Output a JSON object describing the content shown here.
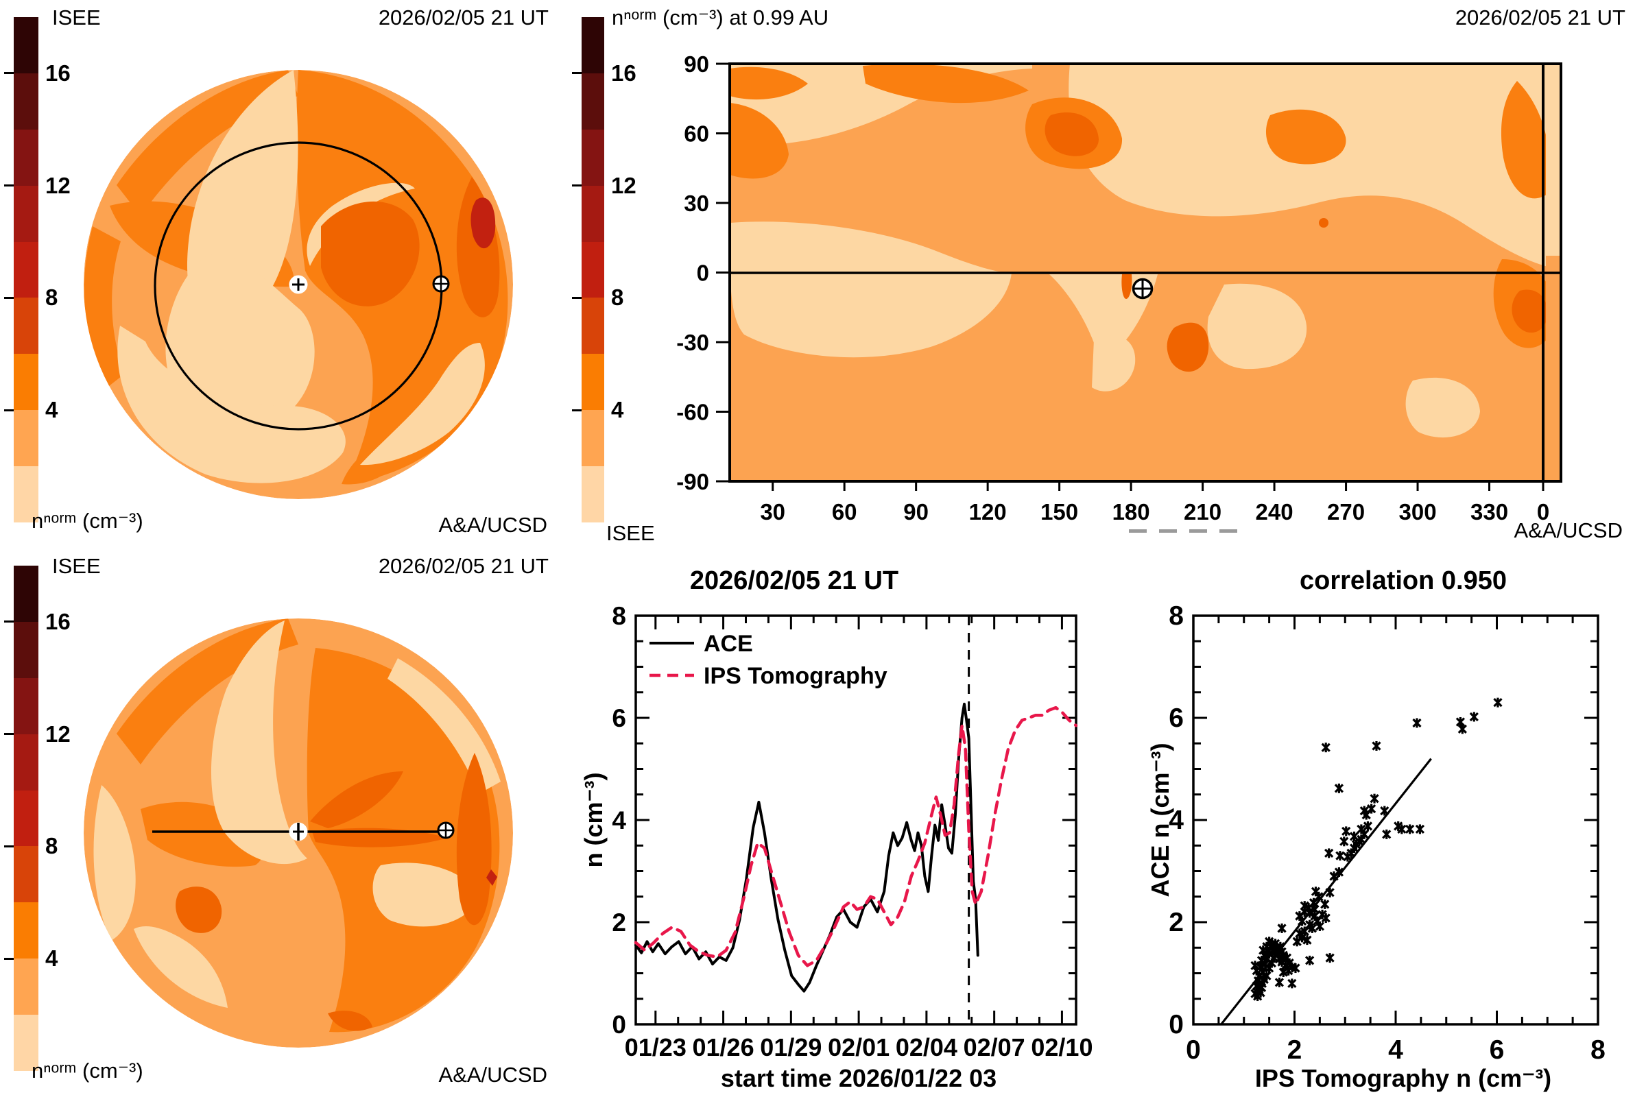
{
  "palette": {
    "c0": "#fdd7a3",
    "c1": "#fca351",
    "c2": "#fa7f10",
    "c3": "#f06400",
    "c4": "#c22110",
    "ips_red": "#e8174a",
    "colorbar": [
      "#2e0505",
      "#5c0e0c",
      "#841412",
      "#a51a12",
      "#c11f10",
      "#d84409",
      "#fa7d02",
      "#ffa551",
      "#ffd6a6"
    ]
  },
  "colorbar": {
    "range": [
      0,
      18
    ],
    "ticks": [
      {
        "value": 16,
        "label": "16"
      },
      {
        "value": 12,
        "label": "12"
      },
      {
        "value": 8,
        "label": "8"
      },
      {
        "value": 4,
        "label": "4"
      }
    ]
  },
  "panels": {
    "fisheye_top": {
      "source": "ISEE",
      "timestamp": "2026/02/05 21 UT",
      "units": "nⁿᵒʳᵐ (cm⁻³)",
      "credit": "A&A/UCSD"
    },
    "sky_map": {
      "title": "nⁿᵒʳᵐ (cm⁻³) at 0.99 AU",
      "timestamp": "2026/02/05 21 UT",
      "source": "ISEE",
      "credit": "A&A/UCSD",
      "lat_ticks": [
        "90",
        "60",
        "30",
        "0",
        "-30",
        "-60",
        "-90"
      ],
      "lon_ticks": [
        "30",
        "60",
        "90",
        "120",
        "150",
        "180",
        "210",
        "240",
        "270",
        "300",
        "330"
      ],
      "wrap_tick": "0",
      "earth_marker": {
        "lon": 185,
        "lat": -7
      }
    },
    "fisheye_bottom": {
      "source": "ISEE",
      "timestamp": "2026/02/05 21 UT",
      "units": "nⁿᵒʳᵐ (cm⁻³)",
      "credit": "A&A/UCSD"
    }
  },
  "chart_data": [
    {
      "type": "line",
      "title": "2026/02/05 21 UT",
      "xlabel": "start time 2026/01/22 03",
      "ylabel": "n (cm⁻³)",
      "ylim": [
        0,
        8
      ],
      "y_ticks": [
        0,
        2,
        4,
        6,
        8
      ],
      "x_tick_labels": [
        "01/23",
        "01/26",
        "01/29",
        "02/01",
        "02/04",
        "02/07",
        "02/10"
      ],
      "x_axis_days": 19.5,
      "first_tick_day": 0.875,
      "tick_step_days": 3,
      "marker_line_day": 14.75,
      "legend_position": "top-left",
      "series": [
        {
          "name": "ACE",
          "style": "solid",
          "color": "#000000",
          "points": [
            [
              0,
              1.55
            ],
            [
              0.25,
              1.4
            ],
            [
              0.5,
              1.62
            ],
            [
              0.75,
              1.42
            ],
            [
              1.0,
              1.58
            ],
            [
              1.3,
              1.38
            ],
            [
              1.6,
              1.52
            ],
            [
              1.9,
              1.62
            ],
            [
              2.2,
              1.38
            ],
            [
              2.5,
              1.52
            ],
            [
              2.8,
              1.28
            ],
            [
              3.1,
              1.42
            ],
            [
              3.4,
              1.18
            ],
            [
              3.7,
              1.32
            ],
            [
              4.0,
              1.25
            ],
            [
              4.3,
              1.5
            ],
            [
              4.6,
              2.05
            ],
            [
              4.9,
              2.85
            ],
            [
              5.2,
              3.85
            ],
            [
              5.45,
              4.35
            ],
            [
              5.7,
              3.75
            ],
            [
              6.0,
              2.85
            ],
            [
              6.3,
              2.05
            ],
            [
              6.6,
              1.45
            ],
            [
              6.9,
              0.95
            ],
            [
              7.2,
              0.78
            ],
            [
              7.45,
              0.65
            ],
            [
              7.7,
              0.82
            ],
            [
              8.0,
              1.15
            ],
            [
              8.3,
              1.45
            ],
            [
              8.6,
              1.75
            ],
            [
              8.9,
              2.1
            ],
            [
              9.2,
              2.25
            ],
            [
              9.5,
              2.0
            ],
            [
              9.8,
              1.9
            ],
            [
              10.1,
              2.3
            ],
            [
              10.4,
              2.45
            ],
            [
              10.7,
              2.2
            ],
            [
              11.0,
              2.6
            ],
            [
              11.2,
              3.3
            ],
            [
              11.4,
              3.75
            ],
            [
              11.6,
              3.5
            ],
            [
              11.8,
              3.65
            ],
            [
              12.0,
              3.95
            ],
            [
              12.2,
              3.6
            ],
            [
              12.35,
              3.4
            ],
            [
              12.5,
              3.75
            ],
            [
              12.65,
              3.5
            ],
            [
              12.8,
              2.9
            ],
            [
              12.95,
              2.6
            ],
            [
              13.1,
              3.3
            ],
            [
              13.25,
              3.9
            ],
            [
              13.4,
              3.6
            ],
            [
              13.55,
              4.3
            ],
            [
              13.7,
              3.9
            ],
            [
              13.85,
              3.45
            ],
            [
              14.0,
              3.35
            ],
            [
              14.15,
              4.1
            ],
            [
              14.3,
              5.2
            ],
            [
              14.45,
              6.0
            ],
            [
              14.55,
              6.27
            ],
            [
              14.65,
              5.95
            ],
            [
              14.75,
              5.6
            ],
            [
              14.85,
              4.2
            ],
            [
              14.95,
              2.8
            ],
            [
              15.05,
              2.45
            ],
            [
              15.15,
              1.35
            ]
          ]
        },
        {
          "name": "IPS Tomography",
          "style": "dashed",
          "color": "#e8174a",
          "points": [
            [
              0,
              1.6
            ],
            [
              0.4,
              1.45
            ],
            [
              0.8,
              1.6
            ],
            [
              1.2,
              1.78
            ],
            [
              1.6,
              1.9
            ],
            [
              2.0,
              1.82
            ],
            [
              2.4,
              1.55
            ],
            [
              2.8,
              1.42
            ],
            [
              3.2,
              1.35
            ],
            [
              3.6,
              1.32
            ],
            [
              4.0,
              1.45
            ],
            [
              4.4,
              1.8
            ],
            [
              4.8,
              2.5
            ],
            [
              5.1,
              3.1
            ],
            [
              5.4,
              3.55
            ],
            [
              5.7,
              3.45
            ],
            [
              6.0,
              3.0
            ],
            [
              6.4,
              2.4
            ],
            [
              6.8,
              1.8
            ],
            [
              7.2,
              1.35
            ],
            [
              7.6,
              1.15
            ],
            [
              8.0,
              1.25
            ],
            [
              8.4,
              1.55
            ],
            [
              8.8,
              1.9
            ],
            [
              9.2,
              2.3
            ],
            [
              9.5,
              2.4
            ],
            [
              9.8,
              2.25
            ],
            [
              10.1,
              2.3
            ],
            [
              10.4,
              2.5
            ],
            [
              10.7,
              2.45
            ],
            [
              11.0,
              2.2
            ],
            [
              11.3,
              1.95
            ],
            [
              11.6,
              2.1
            ],
            [
              11.9,
              2.4
            ],
            [
              12.2,
              2.9
            ],
            [
              12.5,
              3.2
            ],
            [
              12.8,
              3.55
            ],
            [
              13.1,
              4.1
            ],
            [
              13.3,
              4.45
            ],
            [
              13.5,
              4.1
            ],
            [
              13.7,
              3.7
            ],
            [
              13.9,
              3.75
            ],
            [
              14.1,
              4.3
            ],
            [
              14.3,
              5.3
            ],
            [
              14.45,
              5.85
            ],
            [
              14.6,
              5.4
            ],
            [
              14.75,
              3.8
            ],
            [
              14.9,
              2.6
            ],
            [
              15.05,
              2.35
            ],
            [
              15.3,
              2.6
            ],
            [
              15.6,
              3.3
            ],
            [
              15.9,
              4.1
            ],
            [
              16.2,
              4.8
            ],
            [
              16.5,
              5.4
            ],
            [
              16.8,
              5.75
            ],
            [
              17.1,
              5.95
            ],
            [
              17.4,
              6.0
            ],
            [
              17.7,
              6.05
            ],
            [
              18.0,
              6.05
            ],
            [
              18.3,
              6.15
            ],
            [
              18.6,
              6.2
            ],
            [
              18.9,
              6.1
            ],
            [
              19.2,
              5.95
            ],
            [
              19.5,
              5.85
            ]
          ]
        }
      ]
    },
    {
      "type": "scatter",
      "title": "correlation 0.950",
      "correlation": 0.95,
      "xlabel": "IPS Tomography n (cm⁻³)",
      "ylabel": "ACE n (cm⁻³)",
      "xlim": [
        0,
        8
      ],
      "ylim": [
        0,
        8
      ],
      "x_ticks": [
        0,
        2,
        4,
        6,
        8
      ],
      "y_ticks": [
        0,
        2,
        4,
        6,
        8
      ],
      "fit_line": [
        [
          0.55,
          0
        ],
        [
          4.7,
          5.2
        ]
      ],
      "points": [
        [
          1.22,
          0.6
        ],
        [
          1.27,
          0.55
        ],
        [
          1.3,
          0.68
        ],
        [
          1.25,
          0.75
        ],
        [
          1.33,
          0.62
        ],
        [
          1.35,
          0.72
        ],
        [
          1.28,
          0.85
        ],
        [
          1.36,
          0.8
        ],
        [
          1.4,
          0.88
        ],
        [
          1.3,
          0.95
        ],
        [
          1.25,
          1.05
        ],
        [
          1.38,
          1.02
        ],
        [
          1.45,
          0.95
        ],
        [
          1.22,
          1.15
        ],
        [
          1.32,
          1.12
        ],
        [
          1.42,
          1.18
        ],
        [
          1.5,
          1.1
        ],
        [
          1.35,
          1.25
        ],
        [
          1.45,
          1.28
        ],
        [
          1.55,
          1.2
        ],
        [
          1.4,
          1.35
        ],
        [
          1.5,
          1.38
        ],
        [
          1.6,
          1.3
        ],
        [
          1.38,
          1.45
        ],
        [
          1.48,
          1.42
        ],
        [
          1.58,
          1.45
        ],
        [
          1.68,
          1.38
        ],
        [
          1.45,
          1.52
        ],
        [
          1.55,
          1.55
        ],
        [
          1.65,
          1.5
        ],
        [
          1.75,
          1.42
        ],
        [
          1.5,
          1.62
        ],
        [
          1.62,
          1.58
        ],
        [
          1.72,
          1.52
        ],
        [
          1.6,
          1.42
        ],
        [
          1.7,
          1.28
        ],
        [
          1.78,
          1.35
        ],
        [
          1.85,
          1.3
        ],
        [
          1.9,
          1.2
        ],
        [
          1.82,
          1.15
        ],
        [
          1.75,
          1.22
        ],
        [
          1.95,
          1.12
        ],
        [
          1.88,
          1.05
        ],
        [
          1.78,
          1.02
        ],
        [
          1.7,
          0.82
        ],
        [
          1.95,
          0.8
        ],
        [
          2.02,
          1.1
        ],
        [
          2.3,
          1.25
        ],
        [
          2.7,
          1.3
        ],
        [
          1.75,
          1.88
        ],
        [
          2.05,
          1.62
        ],
        [
          2.15,
          1.7
        ],
        [
          2.1,
          1.78
        ],
        [
          2.25,
          1.65
        ],
        [
          2.2,
          1.82
        ],
        [
          2.35,
          1.88
        ],
        [
          2.3,
          1.95
        ],
        [
          2.15,
          2.02
        ],
        [
          2.1,
          2.12
        ],
        [
          2.2,
          2.2
        ],
        [
          2.3,
          2.18
        ],
        [
          2.28,
          2.28
        ],
        [
          2.4,
          2.12
        ],
        [
          2.45,
          2.02
        ],
        [
          2.5,
          1.92
        ],
        [
          2.4,
          2.25
        ],
        [
          2.2,
          2.32
        ],
        [
          2.38,
          2.38
        ],
        [
          2.55,
          2.15
        ],
        [
          2.62,
          2.08
        ],
        [
          2.48,
          2.5
        ],
        [
          2.6,
          2.35
        ],
        [
          2.42,
          2.6
        ],
        [
          2.7,
          2.58
        ],
        [
          2.78,
          2.9
        ],
        [
          2.88,
          2.98
        ],
        [
          2.9,
          3.3
        ],
        [
          3.05,
          3.28
        ],
        [
          3.12,
          3.35
        ],
        [
          2.68,
          3.35
        ],
        [
          3.18,
          3.45
        ],
        [
          3.22,
          3.52
        ],
        [
          3.28,
          3.58
        ],
        [
          3.32,
          3.62
        ],
        [
          3.18,
          3.68
        ],
        [
          3.38,
          3.72
        ],
        [
          2.98,
          3.58
        ],
        [
          3.02,
          3.78
        ],
        [
          3.32,
          3.82
        ],
        [
          3.45,
          3.88
        ],
        [
          3.42,
          4.1
        ],
        [
          3.38,
          4.18
        ],
        [
          3.52,
          4.22
        ],
        [
          3.58,
          4.42
        ],
        [
          3.78,
          4.18
        ],
        [
          3.82,
          3.72
        ],
        [
          4.05,
          3.88
        ],
        [
          4.12,
          3.82
        ],
        [
          4.28,
          3.82
        ],
        [
          4.48,
          3.82
        ],
        [
          2.88,
          4.62
        ],
        [
          2.62,
          5.42
        ],
        [
          3.62,
          5.45
        ],
        [
          4.42,
          5.9
        ],
        [
          5.28,
          5.92
        ],
        [
          5.32,
          5.78
        ],
        [
          5.55,
          6.02
        ],
        [
          6.02,
          6.3
        ]
      ]
    }
  ]
}
